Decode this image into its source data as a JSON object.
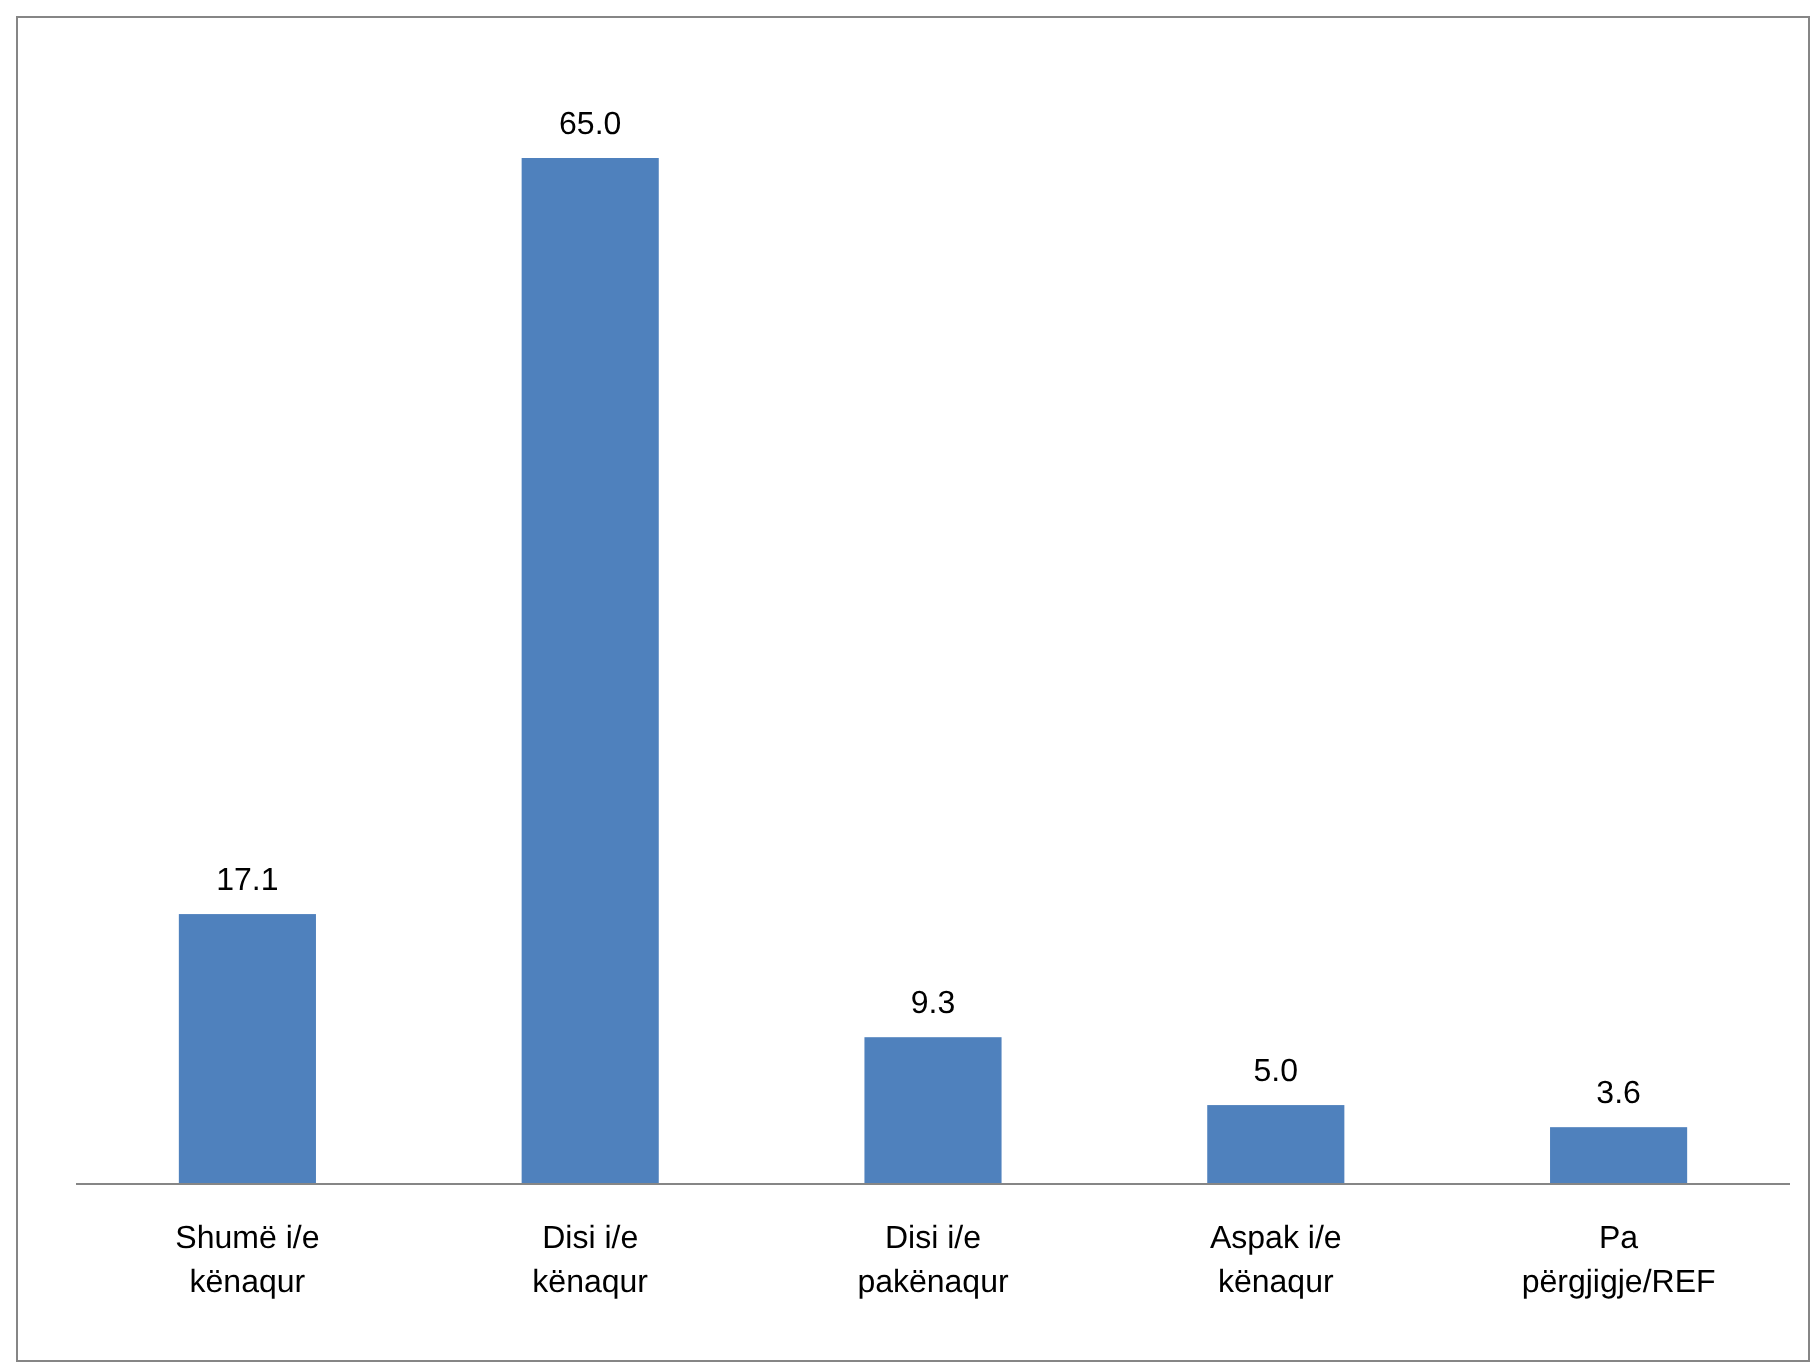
{
  "chart_data": {
    "type": "bar",
    "categories": [
      "Shumë i/e kënaqur",
      "Disi i/e kënaqur",
      "Disi i/e pakënaqur",
      "Aspak i/e kënaqur",
      "Pa përgjigje/REF"
    ],
    "values": [
      17.1,
      65.0,
      9.3,
      5.0,
      3.6
    ],
    "value_labels": [
      "17.1",
      "65.0",
      "9.3",
      "5.0",
      "3.6"
    ],
    "color": "#4f81bd"
  }
}
